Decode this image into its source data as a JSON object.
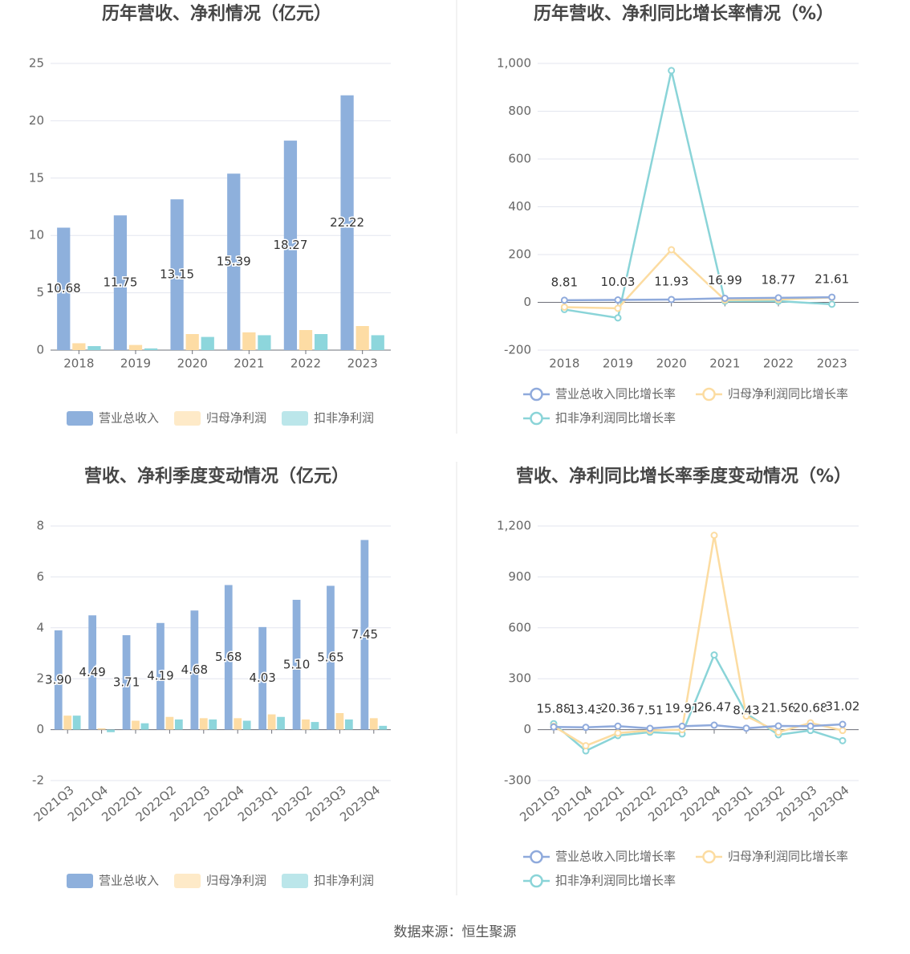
{
  "chart_data": [
    {
      "type": "bar",
      "title": "历年营收、净利情况（亿元）",
      "categories": [
        "2018",
        "2019",
        "2020",
        "2021",
        "2022",
        "2023"
      ],
      "series": [
        {
          "name": "营业总收入",
          "color": "#8eb0dc",
          "values": [
            10.68,
            11.75,
            13.15,
            15.39,
            18.27,
            22.22
          ],
          "value_labels": [
            "10.68",
            "11.75",
            "13.15",
            "15.39",
            "18.27",
            "22.22"
          ]
        },
        {
          "name": "归母净利润",
          "color": "#fddca4",
          "values": [
            0.6,
            0.45,
            1.4,
            1.55,
            1.75,
            2.1
          ]
        },
        {
          "name": "扣非净利润",
          "color": "#8dd6dc",
          "values": [
            0.35,
            0.15,
            1.15,
            1.3,
            1.4,
            1.3
          ]
        }
      ],
      "ylim": [
        0,
        25
      ],
      "yticks": [
        0,
        5,
        10,
        15,
        20,
        25
      ],
      "grid": true
    },
    {
      "type": "line",
      "title": "历年营收、净利同比增长率情况（%）",
      "categories": [
        "2018",
        "2019",
        "2020",
        "2021",
        "2022",
        "2023"
      ],
      "series": [
        {
          "name": "营业总收入同比增长率",
          "color": "#8faadc",
          "values": [
            8.81,
            10.03,
            11.93,
            16.99,
            18.77,
            21.61
          ],
          "value_labels": [
            "8.81",
            "10.03",
            "11.93",
            "16.99",
            "18.77",
            "21.61"
          ]
        },
        {
          "name": "归母净利润同比增长率",
          "color": "#fcdca1",
          "values": [
            -20,
            -25,
            220,
            10,
            12,
            20
          ]
        },
        {
          "name": "扣非净利润同比增长率",
          "color": "#8ad4d8",
          "values": [
            -30,
            -65,
            970,
            5,
            5,
            -8
          ]
        }
      ],
      "ylim": [
        -200,
        1000
      ],
      "yticks": [
        -200,
        0,
        200,
        400,
        600,
        800,
        {
          "value": 1000,
          "label": "1,000"
        }
      ],
      "grid": true
    },
    {
      "type": "bar",
      "title": "营收、净利季度变动情况（亿元）",
      "categories": [
        "2021Q3",
        "2021Q4",
        "2022Q1",
        "2022Q2",
        "2022Q3",
        "2022Q4",
        "2023Q1",
        "2023Q2",
        "2023Q3",
        "2023Q4"
      ],
      "series": [
        {
          "name": "营业总收入",
          "color": "#8eb0dc",
          "values": [
            3.9,
            4.49,
            3.71,
            4.19,
            4.68,
            5.68,
            4.03,
            5.1,
            5.65,
            7.45
          ],
          "value_labels": [
            "3.90",
            "4.49",
            "3.71",
            "4.19",
            "4.68",
            "5.68",
            "4.03",
            "5.10",
            "5.65",
            "7.45"
          ]
        },
        {
          "name": "归母净利润",
          "color": "#fddca4",
          "values": [
            0.55,
            0.05,
            0.35,
            0.5,
            0.45,
            0.45,
            0.6,
            0.4,
            0.65,
            0.45
          ]
        },
        {
          "name": "扣非净利润",
          "color": "#8dd6dc",
          "values": [
            0.55,
            -0.1,
            0.25,
            0.4,
            0.4,
            0.35,
            0.5,
            0.3,
            0.4,
            0.15
          ]
        }
      ],
      "ylim": [
        -2,
        8
      ],
      "yticks": [
        -2,
        0,
        2,
        4,
        6,
        8
      ],
      "grid": true
    },
    {
      "type": "line",
      "title": "营收、净利同比增长率季度变动情况（%）",
      "categories": [
        "2021Q3",
        "2021Q4",
        "2022Q1",
        "2022Q2",
        "2022Q3",
        "2022Q4",
        "2023Q1",
        "2023Q2",
        "2023Q3",
        "2023Q4"
      ],
      "series": [
        {
          "name": "营业总收入同比增长率",
          "color": "#8faadc",
          "values": [
            15.88,
            13.43,
            20.36,
            7.51,
            19.91,
            26.47,
            8.43,
            21.56,
            20.68,
            31.02
          ],
          "value_labels": [
            "15.88",
            "13.43",
            "20.36",
            "7.51",
            "19.91",
            "26.47",
            "8.43",
            "21.56",
            "20.68",
            "31.02"
          ]
        },
        {
          "name": "归母净利润同比增长率",
          "color": "#fcdca1",
          "values": [
            20,
            -95,
            -20,
            -5,
            0,
            1145,
            80,
            -15,
            40,
            -5
          ]
        },
        {
          "name": "扣非净利润同比增长率",
          "color": "#8ad4d8",
          "values": [
            35,
            -125,
            -35,
            -15,
            -25,
            440,
            95,
            -30,
            -5,
            -65
          ]
        }
      ],
      "ylim": [
        -300,
        1200
      ],
      "yticks": [
        -300,
        0,
        300,
        600,
        900,
        {
          "value": 1200,
          "label": "1,200"
        }
      ],
      "grid": true
    }
  ],
  "source": "数据来源：恒生聚源"
}
